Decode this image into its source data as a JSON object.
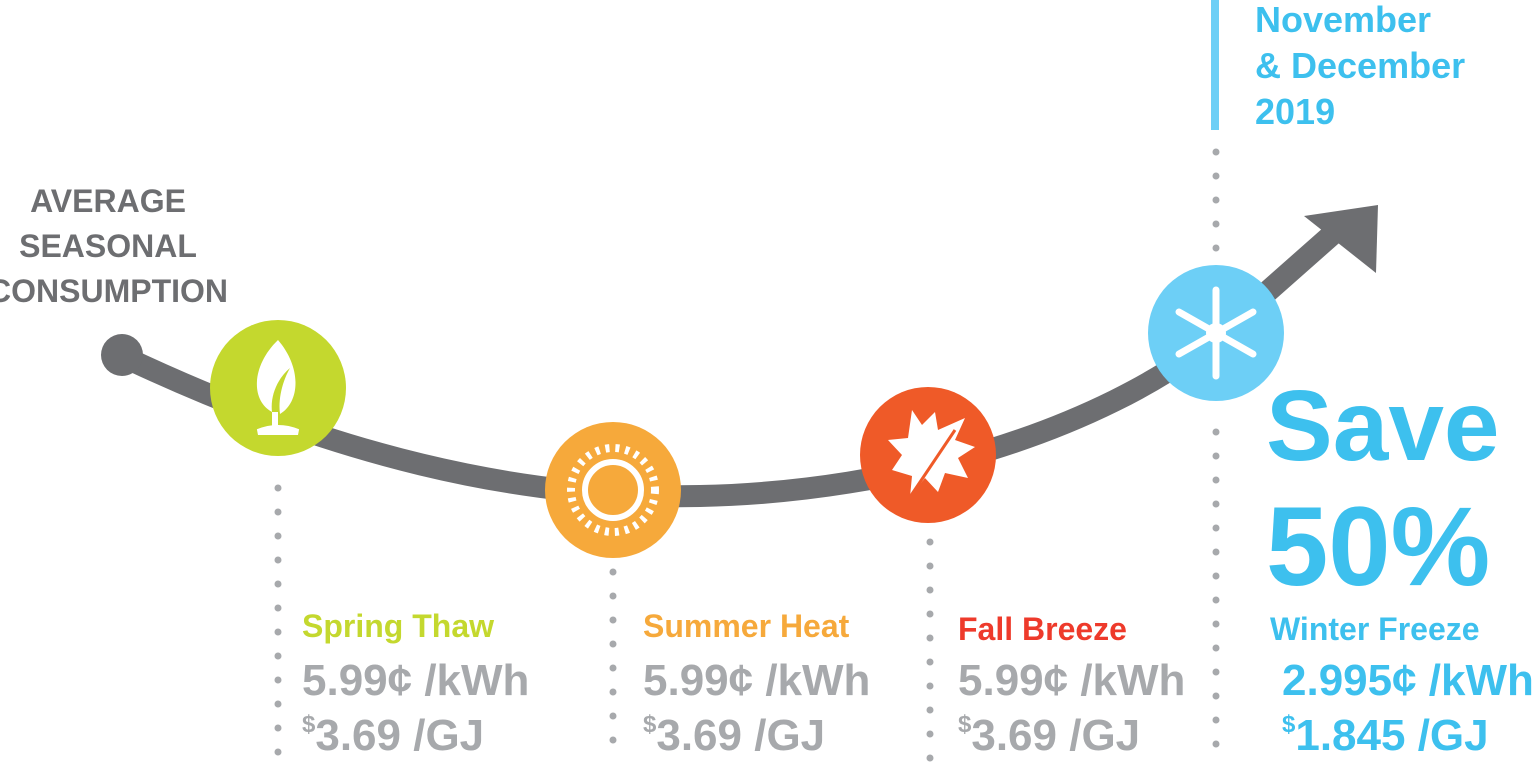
{
  "title_lines": [
    "AVERAGE",
    "SEASONAL",
    "CONSUMPTION"
  ],
  "period_lines": [
    "November",
    "& December",
    "2019"
  ],
  "promo": {
    "line1": "Save",
    "line2": "50%"
  },
  "seasons": [
    {
      "name": "Spring Thaw",
      "electricity_rate": "5.99¢ /kWh",
      "gas_currency": "$",
      "gas_rate": "3.69 /GJ"
    },
    {
      "name": "Summer Heat",
      "electricity_rate": "5.99¢ /kWh",
      "gas_currency": "$",
      "gas_rate": "3.69 /GJ"
    },
    {
      "name": "Fall Breeze",
      "electricity_rate": "5.99¢ /kWh",
      "gas_currency": "$",
      "gas_rate": "3.69 /GJ"
    },
    {
      "name": "Winter Freeze",
      "electricity_rate": "2.995¢ /kWh",
      "gas_currency": "$",
      "gas_rate": "1.845 /GJ"
    }
  ]
}
